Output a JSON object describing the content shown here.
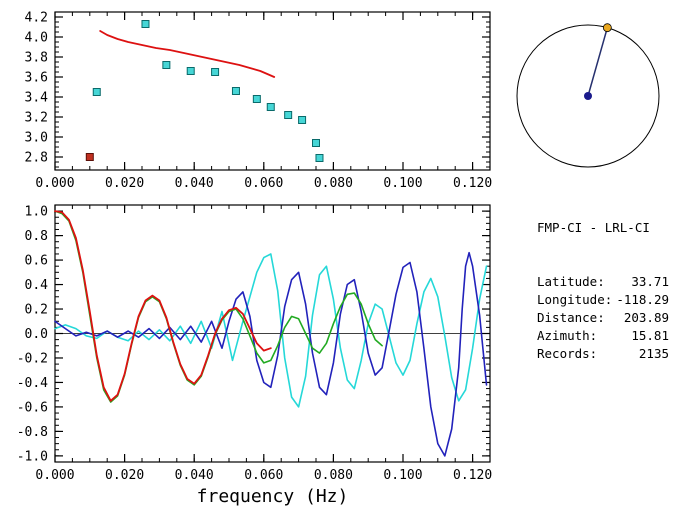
{
  "info_panel": {
    "title": "FMP-CI - LRL-CI",
    "rows": [
      {
        "key": "latitude",
        "label": "Latitude:",
        "value": "33.71"
      },
      {
        "key": "longitude",
        "label": "Longitude:",
        "value": "-118.29"
      },
      {
        "key": "distance",
        "label": "Distance:",
        "value": "203.89"
      },
      {
        "key": "azimuth",
        "label": "Azimuth:",
        "value": "15.81"
      },
      {
        "key": "records",
        "label": "Records:",
        "value": "2135"
      }
    ]
  },
  "azimuth_dial": {
    "azimuth_deg": 15.81,
    "circle_color": "#000000",
    "line_color": "#26306e",
    "center_dot_color": "#1a1a8c",
    "edge_dot_color": "#eaa820"
  },
  "chart_data": [
    {
      "type": "scatter",
      "title": "",
      "xlabel": "",
      "ylabel": "",
      "xlim": [
        0,
        0.125
      ],
      "ylim": [
        2.67,
        4.25
      ],
      "xminor_step": 0.005,
      "yminor_step": 0.05,
      "grid": false,
      "zero_line": false,
      "xticks": [
        0.0,
        0.02,
        0.04,
        0.06,
        0.08,
        0.1,
        0.12
      ],
      "xtick_labels": [
        "0.000",
        "0.020",
        "0.040",
        "0.060",
        "0.080",
        "0.100",
        "0.120"
      ],
      "yticks": [
        2.8,
        3.0,
        3.2,
        3.4,
        3.6,
        3.8,
        4.0,
        4.2
      ],
      "ytick_labels": [
        "2.8",
        "3.0",
        "3.2",
        "3.4",
        "3.6",
        "3.8",
        "4.0",
        "4.2"
      ],
      "series": [
        {
          "name": "theoretical-dispersion-curve",
          "type": "line",
          "color": "#dd1111",
          "width": 1.8,
          "points": [
            [
              0.013,
              4.06
            ],
            [
              0.015,
              4.02
            ],
            [
              0.018,
              3.98
            ],
            [
              0.021,
              3.95
            ],
            [
              0.025,
              3.92
            ],
            [
              0.029,
              3.89
            ],
            [
              0.033,
              3.87
            ],
            [
              0.037,
              3.84
            ],
            [
              0.041,
              3.81
            ],
            [
              0.045,
              3.78
            ],
            [
              0.049,
              3.75
            ],
            [
              0.053,
              3.72
            ],
            [
              0.056,
              3.69
            ],
            [
              0.059,
              3.66
            ],
            [
              0.061,
              3.63
            ],
            [
              0.063,
              3.6
            ]
          ]
        },
        {
          "name": "group-velocity-picks",
          "type": "scatter",
          "marker": "square",
          "color": "#46d6d6",
          "edge": "#0a6a6a",
          "size": 7,
          "points": [
            [
              0.012,
              3.45
            ],
            [
              0.026,
              4.13
            ],
            [
              0.032,
              3.72
            ],
            [
              0.039,
              3.66
            ],
            [
              0.046,
              3.65
            ],
            [
              0.052,
              3.46
            ],
            [
              0.058,
              3.38
            ],
            [
              0.062,
              3.3
            ],
            [
              0.067,
              3.22
            ],
            [
              0.071,
              3.17
            ],
            [
              0.075,
              2.94
            ],
            [
              0.076,
              2.79
            ]
          ]
        },
        {
          "name": "rejected-pick",
          "type": "scatter",
          "marker": "square",
          "color": "#c03020",
          "edge": "#5a1008",
          "size": 7,
          "points": [
            [
              0.01,
              2.8
            ]
          ]
        }
      ]
    },
    {
      "type": "line",
      "title": "",
      "xlabel": "frequency (Hz)",
      "ylabel": "",
      "xlim": [
        0,
        0.125
      ],
      "ylim": [
        -1.05,
        1.05
      ],
      "xminor_step": 0.005,
      "yminor_step": 0.05,
      "grid": false,
      "zero_line": true,
      "xticks": [
        0.0,
        0.02,
        0.04,
        0.06,
        0.08,
        0.1,
        0.12
      ],
      "xtick_labels": [
        "0.000",
        "0.020",
        "0.040",
        "0.060",
        "0.080",
        "0.100",
        "0.120"
      ],
      "yticks": [
        -1.0,
        -0.8,
        -0.6,
        -0.4,
        -0.2,
        0.0,
        0.2,
        0.4,
        0.6,
        0.8,
        1.0
      ],
      "ytick_labels": [
        "-1.0",
        "-0.8",
        "-0.6",
        "-0.4",
        "-0.2",
        "0.0",
        "0.2",
        "0.4",
        "0.6",
        "0.8",
        "1.0"
      ],
      "series": [
        {
          "name": "cross-spectrum-cyan",
          "type": "line",
          "color": "#25d8d8",
          "width": 1.6,
          "points": [
            [
              0.0,
              0.04
            ],
            [
              0.003,
              0.07
            ],
            [
              0.006,
              0.04
            ],
            [
              0.009,
              -0.02
            ],
            [
              0.012,
              -0.04
            ],
            [
              0.015,
              0.02
            ],
            [
              0.018,
              -0.03
            ],
            [
              0.021,
              -0.06
            ],
            [
              0.024,
              0.02
            ],
            [
              0.027,
              -0.05
            ],
            [
              0.03,
              0.03
            ],
            [
              0.033,
              -0.06
            ],
            [
              0.036,
              0.06
            ],
            [
              0.039,
              -0.08
            ],
            [
              0.042,
              0.1
            ],
            [
              0.045,
              -0.12
            ],
            [
              0.048,
              0.18
            ],
            [
              0.051,
              -0.22
            ],
            [
              0.054,
              0.1
            ],
            [
              0.056,
              0.3
            ],
            [
              0.058,
              0.5
            ],
            [
              0.06,
              0.62
            ],
            [
              0.062,
              0.65
            ],
            [
              0.064,
              0.35
            ],
            [
              0.066,
              -0.2
            ],
            [
              0.068,
              -0.52
            ],
            [
              0.07,
              -0.6
            ],
            [
              0.072,
              -0.35
            ],
            [
              0.074,
              0.15
            ],
            [
              0.076,
              0.48
            ],
            [
              0.078,
              0.55
            ],
            [
              0.08,
              0.28
            ],
            [
              0.082,
              -0.12
            ],
            [
              0.084,
              -0.38
            ],
            [
              0.086,
              -0.45
            ],
            [
              0.088,
              -0.22
            ],
            [
              0.09,
              0.08
            ],
            [
              0.092,
              0.24
            ],
            [
              0.094,
              0.2
            ],
            [
              0.096,
              -0.02
            ],
            [
              0.098,
              -0.24
            ],
            [
              0.1,
              -0.34
            ],
            [
              0.102,
              -0.22
            ],
            [
              0.104,
              0.08
            ],
            [
              0.106,
              0.34
            ],
            [
              0.108,
              0.45
            ],
            [
              0.11,
              0.3
            ],
            [
              0.112,
              -0.02
            ],
            [
              0.114,
              -0.36
            ],
            [
              0.116,
              -0.55
            ],
            [
              0.118,
              -0.46
            ],
            [
              0.12,
              -0.12
            ],
            [
              0.122,
              0.28
            ],
            [
              0.124,
              0.55
            ]
          ]
        },
        {
          "name": "cross-spectrum-blue",
          "type": "line",
          "color": "#2222bb",
          "width": 1.6,
          "points": [
            [
              0.0,
              0.1
            ],
            [
              0.003,
              0.04
            ],
            [
              0.006,
              -0.02
            ],
            [
              0.009,
              0.01
            ],
            [
              0.012,
              -0.02
            ],
            [
              0.015,
              0.02
            ],
            [
              0.018,
              -0.03
            ],
            [
              0.021,
              0.02
            ],
            [
              0.024,
              -0.03
            ],
            [
              0.027,
              0.04
            ],
            [
              0.03,
              -0.04
            ],
            [
              0.033,
              0.05
            ],
            [
              0.036,
              -0.05
            ],
            [
              0.039,
              0.06
            ],
            [
              0.042,
              -0.07
            ],
            [
              0.045,
              0.1
            ],
            [
              0.048,
              -0.12
            ],
            [
              0.05,
              0.1
            ],
            [
              0.052,
              0.28
            ],
            [
              0.054,
              0.34
            ],
            [
              0.056,
              0.14
            ],
            [
              0.058,
              -0.22
            ],
            [
              0.06,
              -0.4
            ],
            [
              0.062,
              -0.44
            ],
            [
              0.064,
              -0.18
            ],
            [
              0.066,
              0.22
            ],
            [
              0.068,
              0.44
            ],
            [
              0.07,
              0.5
            ],
            [
              0.072,
              0.24
            ],
            [
              0.074,
              -0.16
            ],
            [
              0.076,
              -0.44
            ],
            [
              0.078,
              -0.5
            ],
            [
              0.08,
              -0.24
            ],
            [
              0.082,
              0.16
            ],
            [
              0.084,
              0.4
            ],
            [
              0.086,
              0.44
            ],
            [
              0.088,
              0.18
            ],
            [
              0.09,
              -0.16
            ],
            [
              0.092,
              -0.34
            ],
            [
              0.094,
              -0.28
            ],
            [
              0.096,
              0.02
            ],
            [
              0.098,
              0.32
            ],
            [
              0.1,
              0.54
            ],
            [
              0.102,
              0.58
            ],
            [
              0.104,
              0.34
            ],
            [
              0.106,
              -0.12
            ],
            [
              0.108,
              -0.6
            ],
            [
              0.11,
              -0.9
            ],
            [
              0.112,
              -1.0
            ],
            [
              0.114,
              -0.78
            ],
            [
              0.116,
              -0.28
            ],
            [
              0.117,
              0.2
            ],
            [
              0.118,
              0.55
            ],
            [
              0.119,
              0.66
            ],
            [
              0.12,
              0.55
            ],
            [
              0.122,
              0.15
            ],
            [
              0.124,
              -0.42
            ]
          ]
        },
        {
          "name": "fitted-bessel-green",
          "type": "line",
          "color": "#22aa22",
          "width": 1.6,
          "points": [
            [
              0.0,
              1.0
            ],
            [
              0.002,
              0.98
            ],
            [
              0.004,
              0.92
            ],
            [
              0.006,
              0.76
            ],
            [
              0.008,
              0.5
            ],
            [
              0.01,
              0.15
            ],
            [
              0.012,
              -0.2
            ],
            [
              0.014,
              -0.46
            ],
            [
              0.016,
              -0.56
            ],
            [
              0.018,
              -0.51
            ],
            [
              0.02,
              -0.34
            ],
            [
              0.022,
              -0.09
            ],
            [
              0.024,
              0.13
            ],
            [
              0.026,
              0.26
            ],
            [
              0.028,
              0.3
            ],
            [
              0.03,
              0.26
            ],
            [
              0.032,
              0.12
            ],
            [
              0.034,
              -0.08
            ],
            [
              0.036,
              -0.26
            ],
            [
              0.038,
              -0.38
            ],
            [
              0.04,
              -0.42
            ],
            [
              0.042,
              -0.35
            ],
            [
              0.044,
              -0.19
            ],
            [
              0.046,
              -0.01
            ],
            [
              0.048,
              0.11
            ],
            [
              0.05,
              0.18
            ],
            [
              0.052,
              0.2
            ],
            [
              0.054,
              0.12
            ],
            [
              0.056,
              -0.02
            ],
            [
              0.058,
              -0.16
            ],
            [
              0.06,
              -0.24
            ],
            [
              0.062,
              -0.22
            ],
            [
              0.064,
              -0.1
            ],
            [
              0.066,
              0.05
            ],
            [
              0.068,
              0.14
            ],
            [
              0.07,
              0.12
            ],
            [
              0.072,
              0.0
            ],
            [
              0.074,
              -0.12
            ],
            [
              0.076,
              -0.16
            ],
            [
              0.078,
              -0.08
            ],
            [
              0.08,
              0.08
            ],
            [
              0.082,
              0.22
            ],
            [
              0.084,
              0.32
            ],
            [
              0.086,
              0.33
            ],
            [
              0.088,
              0.24
            ],
            [
              0.09,
              0.08
            ],
            [
              0.092,
              -0.05
            ],
            [
              0.094,
              -0.1
            ]
          ]
        },
        {
          "name": "smoothed-spectrum-red",
          "type": "line",
          "color": "#dd1111",
          "width": 1.8,
          "points": [
            [
              0.0,
              1.0
            ],
            [
              0.002,
              0.99
            ],
            [
              0.004,
              0.93
            ],
            [
              0.006,
              0.78
            ],
            [
              0.008,
              0.52
            ],
            [
              0.01,
              0.18
            ],
            [
              0.012,
              -0.18
            ],
            [
              0.014,
              -0.44
            ],
            [
              0.016,
              -0.55
            ],
            [
              0.018,
              -0.5
            ],
            [
              0.02,
              -0.33
            ],
            [
              0.022,
              -0.08
            ],
            [
              0.024,
              0.14
            ],
            [
              0.026,
              0.27
            ],
            [
              0.028,
              0.31
            ],
            [
              0.03,
              0.27
            ],
            [
              0.032,
              0.13
            ],
            [
              0.034,
              -0.07
            ],
            [
              0.036,
              -0.25
            ],
            [
              0.038,
              -0.37
            ],
            [
              0.04,
              -0.41
            ],
            [
              0.042,
              -0.34
            ],
            [
              0.044,
              -0.18
            ],
            [
              0.046,
              0.0
            ],
            [
              0.048,
              0.12
            ],
            [
              0.05,
              0.19
            ],
            [
              0.052,
              0.21
            ],
            [
              0.054,
              0.16
            ],
            [
              0.056,
              0.04
            ],
            [
              0.058,
              -0.08
            ],
            [
              0.06,
              -0.14
            ],
            [
              0.062,
              -0.12
            ]
          ]
        }
      ]
    }
  ]
}
